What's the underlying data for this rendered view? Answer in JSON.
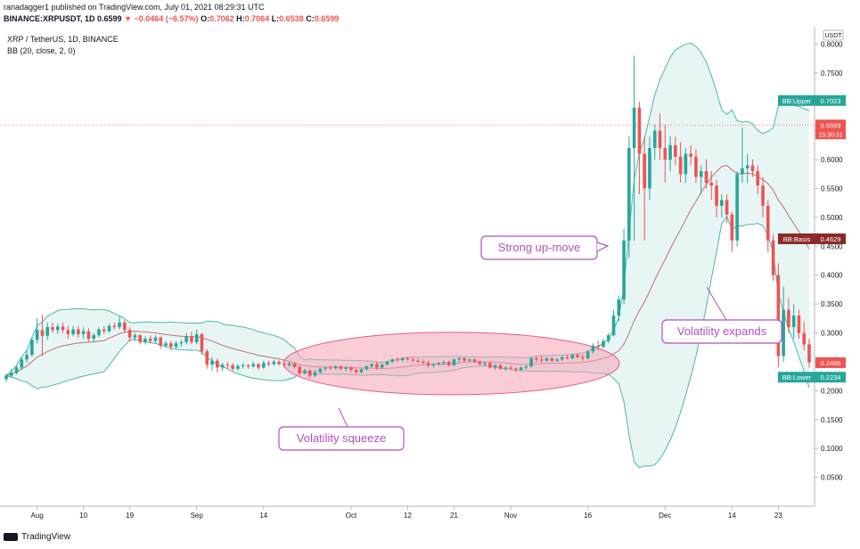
{
  "header": {
    "publisher": "ranadagger1 published on TradingView.com, July 01, 2021 08:29:31 UTC",
    "symbol": "BINANCE:XRPUSDT, 1D",
    "last": "0.6599",
    "change": "▼ −0.0464 (−6.57%)",
    "o_label": "O:",
    "o_value": "0.7062",
    "h_label": "H:",
    "h_value": "0.7064",
    "l_label": "L:",
    "l_value": "0.6538",
    "c_label": "C:",
    "c_value": "0.6599"
  },
  "legend": {
    "pair": "XRP / TetherUS, 1D, BINANCE",
    "indicator": "BB (20, close, 2, 0)"
  },
  "footer": {
    "brand": "TradingView"
  },
  "colors": {
    "up": "#26a69a",
    "down": "#ef5350",
    "band": "#4db6ac",
    "basis": "#c27070",
    "band_fill": "#e0f2f1",
    "callout": "#b34fc0",
    "squeeze_fill": "#f4a3b5"
  },
  "chart_data": {
    "type": "candlestick",
    "currency_badge": "USDT",
    "y_ticks": [
      "0.8000",
      "0.7500",
      "0.7000",
      "0.6500",
      "0.6000",
      "0.5500",
      "0.5000",
      "0.4500",
      "0.4000",
      "0.3500",
      "0.3000",
      "0.2500",
      "0.2000",
      "0.1500",
      "0.1000",
      "0.0500"
    ],
    "y_tick_values": [
      0.8,
      0.75,
      0.7,
      0.65,
      0.6,
      0.55,
      0.5,
      0.45,
      0.4,
      0.35,
      0.3,
      0.25,
      0.2,
      0.15,
      0.1,
      0.05
    ],
    "ylim": [
      0.0,
      0.83
    ],
    "x_ticks": [
      {
        "label": "Aug",
        "x": "2020-08-01"
      },
      {
        "label": "10",
        "x": "2020-08-10"
      },
      {
        "label": "19",
        "x": "2020-08-19"
      },
      {
        "label": "Sep",
        "x": "2020-09-01"
      },
      {
        "label": "14",
        "x": "2020-09-14"
      },
      {
        "label": "Oct",
        "x": "2020-10-01"
      },
      {
        "label": "12",
        "x": "2020-10-12"
      },
      {
        "label": "21",
        "x": "2020-10-21"
      },
      {
        "label": "Nov",
        "x": "2020-11-01"
      },
      {
        "label": "16",
        "x": "2020-11-16"
      },
      {
        "label": "Dec",
        "x": "2020-12-01"
      },
      {
        "label": "14",
        "x": "2020-12-14"
      },
      {
        "label": "23",
        "x": "2020-12-23"
      }
    ],
    "x_range": [
      "2020-07-26",
      "2020-12-29"
    ],
    "price_labels": [
      {
        "text": "BB:Upper",
        "value_text": "0.7023",
        "value": 0.7023,
        "color": "#26a69a"
      },
      {
        "text": "",
        "value_text": "0.6599",
        "sub": "15:30:31",
        "value": 0.6599,
        "color": "#ef5350"
      },
      {
        "text": "BB:Basis",
        "value_text": "0.4629",
        "value": 0.4629,
        "color": "#8b2a2a"
      },
      {
        "text": "",
        "value_text": "0.2485",
        "value": 0.2485,
        "color": "#ef5350"
      },
      {
        "text": "BB:Lower",
        "value_text": "0.2234",
        "value": 0.2234,
        "color": "#26a69a"
      }
    ],
    "dotted_line_value": 0.6599,
    "candles": [
      [
        "2020-07-26",
        0.22,
        0.23,
        0.215,
        0.226
      ],
      [
        "2020-07-27",
        0.226,
        0.238,
        0.222,
        0.231
      ],
      [
        "2020-07-28",
        0.231,
        0.244,
        0.228,
        0.24
      ],
      [
        "2020-07-29",
        0.24,
        0.258,
        0.236,
        0.254
      ],
      [
        "2020-07-30",
        0.254,
        0.27,
        0.248,
        0.262
      ],
      [
        "2020-07-31",
        0.262,
        0.292,
        0.258,
        0.288
      ],
      [
        "2020-08-01",
        0.288,
        0.325,
        0.282,
        0.305
      ],
      [
        "2020-08-02",
        0.305,
        0.332,
        0.26,
        0.295
      ],
      [
        "2020-08-03",
        0.295,
        0.318,
        0.288,
        0.31
      ],
      [
        "2020-08-04",
        0.31,
        0.318,
        0.3,
        0.305
      ],
      [
        "2020-08-05",
        0.305,
        0.316,
        0.298,
        0.311
      ],
      [
        "2020-08-06",
        0.311,
        0.318,
        0.3,
        0.305
      ],
      [
        "2020-08-07",
        0.305,
        0.312,
        0.29,
        0.298
      ],
      [
        "2020-08-08",
        0.298,
        0.312,
        0.294,
        0.306
      ],
      [
        "2020-08-09",
        0.306,
        0.312,
        0.292,
        0.298
      ],
      [
        "2020-08-10",
        0.298,
        0.31,
        0.29,
        0.303
      ],
      [
        "2020-08-11",
        0.303,
        0.308,
        0.285,
        0.29
      ],
      [
        "2020-08-12",
        0.29,
        0.3,
        0.284,
        0.296
      ],
      [
        "2020-08-13",
        0.296,
        0.31,
        0.292,
        0.306
      ],
      [
        "2020-08-14",
        0.306,
        0.312,
        0.298,
        0.303
      ],
      [
        "2020-08-15",
        0.303,
        0.316,
        0.3,
        0.312
      ],
      [
        "2020-08-16",
        0.312,
        0.318,
        0.306,
        0.31
      ],
      [
        "2020-08-17",
        0.31,
        0.328,
        0.306,
        0.318
      ],
      [
        "2020-08-18",
        0.318,
        0.322,
        0.3,
        0.305
      ],
      [
        "2020-08-19",
        0.305,
        0.31,
        0.285,
        0.292
      ],
      [
        "2020-08-20",
        0.292,
        0.3,
        0.286,
        0.296
      ],
      [
        "2020-08-21",
        0.296,
        0.298,
        0.28,
        0.284
      ],
      [
        "2020-08-22",
        0.284,
        0.294,
        0.28,
        0.29
      ],
      [
        "2020-08-23",
        0.29,
        0.296,
        0.282,
        0.286
      ],
      [
        "2020-08-24",
        0.286,
        0.296,
        0.282,
        0.292
      ],
      [
        "2020-08-25",
        0.292,
        0.294,
        0.272,
        0.278
      ],
      [
        "2020-08-26",
        0.278,
        0.286,
        0.274,
        0.282
      ],
      [
        "2020-08-27",
        0.282,
        0.286,
        0.27,
        0.276
      ],
      [
        "2020-08-28",
        0.276,
        0.286,
        0.272,
        0.282
      ],
      [
        "2020-08-29",
        0.282,
        0.288,
        0.276,
        0.284
      ],
      [
        "2020-08-30",
        0.284,
        0.3,
        0.28,
        0.294
      ],
      [
        "2020-08-31",
        0.294,
        0.302,
        0.28,
        0.284
      ],
      [
        "2020-09-01",
        0.284,
        0.306,
        0.28,
        0.298
      ],
      [
        "2020-09-02",
        0.298,
        0.3,
        0.262,
        0.268
      ],
      [
        "2020-09-03",
        0.268,
        0.272,
        0.238,
        0.245
      ],
      [
        "2020-09-04",
        0.245,
        0.258,
        0.235,
        0.252
      ],
      [
        "2020-09-05",
        0.252,
        0.256,
        0.232,
        0.24
      ],
      [
        "2020-09-06",
        0.24,
        0.248,
        0.234,
        0.245
      ],
      [
        "2020-09-07",
        0.245,
        0.25,
        0.238,
        0.244
      ],
      [
        "2020-09-08",
        0.244,
        0.248,
        0.234,
        0.238
      ],
      [
        "2020-09-09",
        0.238,
        0.246,
        0.235,
        0.243
      ],
      [
        "2020-09-10",
        0.243,
        0.248,
        0.238,
        0.244
      ],
      [
        "2020-09-11",
        0.244,
        0.246,
        0.238,
        0.242
      ],
      [
        "2020-09-12",
        0.242,
        0.25,
        0.24,
        0.246
      ],
      [
        "2020-09-13",
        0.246,
        0.248,
        0.236,
        0.24
      ],
      [
        "2020-09-14",
        0.24,
        0.252,
        0.238,
        0.248
      ],
      [
        "2020-09-15",
        0.248,
        0.252,
        0.242,
        0.246
      ],
      [
        "2020-09-16",
        0.246,
        0.254,
        0.243,
        0.25
      ],
      [
        "2020-09-17",
        0.25,
        0.253,
        0.244,
        0.246
      ],
      [
        "2020-09-18",
        0.246,
        0.25,
        0.24,
        0.244
      ],
      [
        "2020-09-19",
        0.244,
        0.25,
        0.242,
        0.247
      ],
      [
        "2020-09-20",
        0.247,
        0.249,
        0.238,
        0.241
      ],
      [
        "2020-09-21",
        0.241,
        0.244,
        0.226,
        0.23
      ],
      [
        "2020-09-22",
        0.23,
        0.238,
        0.228,
        0.235
      ],
      [
        "2020-09-23",
        0.235,
        0.237,
        0.222,
        0.226
      ],
      [
        "2020-09-24",
        0.226,
        0.236,
        0.224,
        0.232
      ],
      [
        "2020-09-25",
        0.232,
        0.24,
        0.23,
        0.238
      ],
      [
        "2020-09-26",
        0.238,
        0.242,
        0.234,
        0.24
      ],
      [
        "2020-09-27",
        0.24,
        0.243,
        0.236,
        0.239
      ],
      [
        "2020-09-28",
        0.239,
        0.244,
        0.236,
        0.242
      ],
      [
        "2020-09-29",
        0.242,
        0.244,
        0.236,
        0.238
      ],
      [
        "2020-09-30",
        0.238,
        0.242,
        0.234,
        0.24
      ],
      [
        "2020-10-01",
        0.24,
        0.242,
        0.232,
        0.236
      ],
      [
        "2020-10-02",
        0.236,
        0.238,
        0.228,
        0.232
      ],
      [
        "2020-10-03",
        0.232,
        0.24,
        0.23,
        0.237
      ],
      [
        "2020-10-04",
        0.237,
        0.244,
        0.235,
        0.242
      ],
      [
        "2020-10-05",
        0.242,
        0.248,
        0.24,
        0.246
      ],
      [
        "2020-10-06",
        0.246,
        0.25,
        0.236,
        0.24
      ],
      [
        "2020-10-07",
        0.24,
        0.248,
        0.238,
        0.245
      ],
      [
        "2020-10-08",
        0.245,
        0.252,
        0.244,
        0.25
      ],
      [
        "2020-10-09",
        0.25,
        0.256,
        0.248,
        0.254
      ],
      [
        "2020-10-10",
        0.254,
        0.258,
        0.25,
        0.253
      ],
      [
        "2020-10-11",
        0.253,
        0.258,
        0.25,
        0.256
      ],
      [
        "2020-10-12",
        0.256,
        0.259,
        0.252,
        0.254
      ],
      [
        "2020-10-13",
        0.254,
        0.258,
        0.25,
        0.252
      ],
      [
        "2020-10-14",
        0.252,
        0.256,
        0.248,
        0.25
      ],
      [
        "2020-10-15",
        0.25,
        0.254,
        0.246,
        0.248
      ],
      [
        "2020-10-16",
        0.248,
        0.252,
        0.24,
        0.244
      ],
      [
        "2020-10-17",
        0.244,
        0.248,
        0.24,
        0.246
      ],
      [
        "2020-10-18",
        0.246,
        0.25,
        0.244,
        0.248
      ],
      [
        "2020-10-19",
        0.248,
        0.252,
        0.244,
        0.25
      ],
      [
        "2020-10-20",
        0.25,
        0.252,
        0.242,
        0.244
      ],
      [
        "2020-10-21",
        0.244,
        0.256,
        0.242,
        0.254
      ],
      [
        "2020-10-22",
        0.254,
        0.258,
        0.25,
        0.256
      ],
      [
        "2020-10-23",
        0.256,
        0.258,
        0.25,
        0.252
      ],
      [
        "2020-10-24",
        0.252,
        0.256,
        0.25,
        0.254
      ],
      [
        "2020-10-25",
        0.254,
        0.256,
        0.248,
        0.25
      ],
      [
        "2020-10-26",
        0.25,
        0.252,
        0.244,
        0.246
      ],
      [
        "2020-10-27",
        0.246,
        0.25,
        0.242,
        0.248
      ],
      [
        "2020-10-28",
        0.248,
        0.25,
        0.238,
        0.24
      ],
      [
        "2020-10-29",
        0.24,
        0.246,
        0.236,
        0.244
      ],
      [
        "2020-10-30",
        0.244,
        0.246,
        0.236,
        0.238
      ],
      [
        "2020-10-31",
        0.238,
        0.242,
        0.234,
        0.24
      ],
      [
        "2020-11-01",
        0.24,
        0.244,
        0.236,
        0.238
      ],
      [
        "2020-11-02",
        0.238,
        0.24,
        0.232,
        0.236
      ],
      [
        "2020-11-03",
        0.236,
        0.242,
        0.234,
        0.24
      ],
      [
        "2020-11-04",
        0.24,
        0.244,
        0.236,
        0.242
      ],
      [
        "2020-11-05",
        0.242,
        0.258,
        0.24,
        0.256
      ],
      [
        "2020-11-06",
        0.256,
        0.26,
        0.25,
        0.254
      ],
      [
        "2020-11-07",
        0.254,
        0.26,
        0.248,
        0.252
      ],
      [
        "2020-11-08",
        0.252,
        0.258,
        0.25,
        0.256
      ],
      [
        "2020-11-09",
        0.256,
        0.258,
        0.25,
        0.252
      ],
      [
        "2020-11-10",
        0.252,
        0.256,
        0.25,
        0.254
      ],
      [
        "2020-11-11",
        0.254,
        0.26,
        0.252,
        0.258
      ],
      [
        "2020-11-12",
        0.258,
        0.262,
        0.254,
        0.256
      ],
      [
        "2020-11-13",
        0.256,
        0.264,
        0.254,
        0.262
      ],
      [
        "2020-11-14",
        0.262,
        0.264,
        0.256,
        0.258
      ],
      [
        "2020-11-15",
        0.258,
        0.262,
        0.252,
        0.256
      ],
      [
        "2020-11-16",
        0.256,
        0.27,
        0.254,
        0.268
      ],
      [
        "2020-11-17",
        0.268,
        0.282,
        0.264,
        0.278
      ],
      [
        "2020-11-18",
        0.278,
        0.286,
        0.27,
        0.276
      ],
      [
        "2020-11-19",
        0.276,
        0.29,
        0.274,
        0.286
      ],
      [
        "2020-11-20",
        0.286,
        0.3,
        0.282,
        0.296
      ],
      [
        "2020-11-21",
        0.296,
        0.34,
        0.294,
        0.33
      ],
      [
        "2020-11-22",
        0.33,
        0.365,
        0.32,
        0.358
      ],
      [
        "2020-11-23",
        0.358,
        0.48,
        0.35,
        0.46
      ],
      [
        "2020-11-24",
        0.46,
        0.64,
        0.43,
        0.62
      ],
      [
        "2020-11-25",
        0.62,
        0.78,
        0.46,
        0.69
      ],
      [
        "2020-11-26",
        0.69,
        0.7,
        0.54,
        0.61
      ],
      [
        "2020-11-27",
        0.61,
        0.64,
        0.46,
        0.55
      ],
      [
        "2020-11-28",
        0.55,
        0.64,
        0.53,
        0.62
      ],
      [
        "2020-11-29",
        0.62,
        0.66,
        0.6,
        0.65
      ],
      [
        "2020-11-30",
        0.65,
        0.68,
        0.6,
        0.62
      ],
      [
        "2020-12-01",
        0.62,
        0.66,
        0.56,
        0.6
      ],
      [
        "2020-12-02",
        0.6,
        0.64,
        0.58,
        0.625
      ],
      [
        "2020-12-03",
        0.625,
        0.64,
        0.59,
        0.605
      ],
      [
        "2020-12-04",
        0.605,
        0.63,
        0.56,
        0.575
      ],
      [
        "2020-12-05",
        0.575,
        0.62,
        0.56,
        0.61
      ],
      [
        "2020-12-06",
        0.61,
        0.625,
        0.59,
        0.605
      ],
      [
        "2020-12-07",
        0.605,
        0.618,
        0.56,
        0.57
      ],
      [
        "2020-12-08",
        0.57,
        0.59,
        0.54,
        0.58
      ],
      [
        "2020-12-09",
        0.58,
        0.6,
        0.55,
        0.56
      ],
      [
        "2020-12-10",
        0.56,
        0.58,
        0.53,
        0.555
      ],
      [
        "2020-12-11",
        0.555,
        0.565,
        0.5,
        0.52
      ],
      [
        "2020-12-12",
        0.52,
        0.54,
        0.5,
        0.53
      ],
      [
        "2020-12-13",
        0.53,
        0.54,
        0.49,
        0.505
      ],
      [
        "2020-12-14",
        0.505,
        0.51,
        0.44,
        0.46
      ],
      [
        "2020-12-15",
        0.46,
        0.58,
        0.45,
        0.575
      ],
      [
        "2020-12-16",
        0.575,
        0.655,
        0.56,
        0.585
      ],
      [
        "2020-12-17",
        0.585,
        0.61,
        0.56,
        0.59
      ],
      [
        "2020-12-18",
        0.59,
        0.6,
        0.57,
        0.58
      ],
      [
        "2020-12-19",
        0.58,
        0.59,
        0.54,
        0.555
      ],
      [
        "2020-12-20",
        0.555,
        0.57,
        0.5,
        0.52
      ],
      [
        "2020-12-21",
        0.52,
        0.53,
        0.44,
        0.46
      ],
      [
        "2020-12-22",
        0.46,
        0.47,
        0.39,
        0.4
      ],
      [
        "2020-12-23",
        0.4,
        0.42,
        0.24,
        0.26
      ],
      [
        "2020-12-24",
        0.26,
        0.38,
        0.25,
        0.34
      ],
      [
        "2020-12-25",
        0.34,
        0.36,
        0.3,
        0.31
      ],
      [
        "2020-12-26",
        0.31,
        0.35,
        0.29,
        0.33
      ],
      [
        "2020-12-27",
        0.33,
        0.34,
        0.29,
        0.3
      ],
      [
        "2020-12-28",
        0.3,
        0.32,
        0.27,
        0.28
      ],
      [
        "2020-12-29",
        0.28,
        0.29,
        0.24,
        0.249
      ]
    ],
    "annotations": [
      {
        "text": "Volatility squeeze",
        "kind": "box"
      },
      {
        "text": "Strong up-move",
        "kind": "box"
      },
      {
        "text": "Volatility expands",
        "kind": "box"
      }
    ]
  }
}
